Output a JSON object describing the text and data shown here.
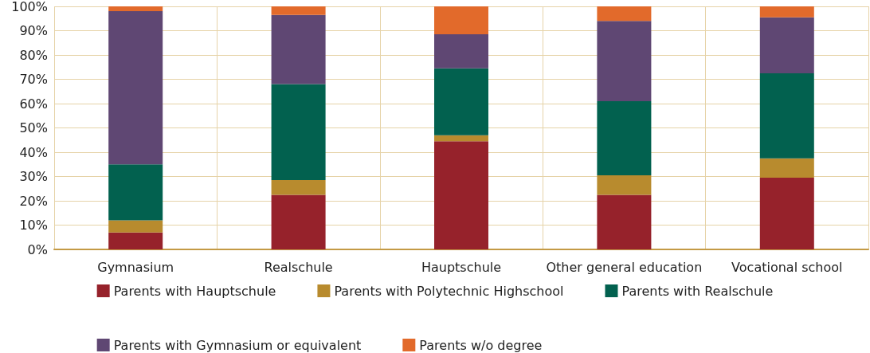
{
  "chart_data": {
    "type": "bar",
    "stacked": true,
    "categories": [
      "Gymnasium",
      "Realschule",
      "Hauptschule",
      "Other general education",
      "Vocational school"
    ],
    "series": [
      {
        "name": "Parents with Hauptschule",
        "color": "#96222b",
        "values": [
          7,
          22.5,
          44.5,
          22.5,
          29.5
        ]
      },
      {
        "name": "Parents with Polytechnic Highschool",
        "color": "#b88b2e",
        "values": [
          5,
          6,
          2.5,
          8,
          8
        ]
      },
      {
        "name": "Parents with Realschule",
        "color": "#02614f",
        "values": [
          23,
          39.5,
          27.5,
          30.5,
          35
        ]
      },
      {
        "name": "Parents with Gymnasium or equivalent",
        "color": "#5f4773",
        "values": [
          63,
          28.5,
          14,
          33,
          23
        ]
      },
      {
        "name": "Parents w/o degree",
        "color": "#e26a2b",
        "values": [
          2,
          3.5,
          11.5,
          6,
          4.5
        ]
      }
    ],
    "ylim": [
      0,
      100
    ],
    "yticks": [
      {
        "value": 0,
        "label": "0%"
      },
      {
        "value": 10,
        "label": "10%"
      },
      {
        "value": 20,
        "label": "20%"
      },
      {
        "value": 30,
        "label": "30%"
      },
      {
        "value": 40,
        "label": "40%"
      },
      {
        "value": 50,
        "label": "50%"
      },
      {
        "value": 60,
        "label": "60%"
      },
      {
        "value": 70,
        "label": "70%"
      },
      {
        "value": 80,
        "label": "80%"
      },
      {
        "value": 90,
        "label": "90%"
      },
      {
        "value": 100,
        "label": "100%"
      }
    ],
    "grid": true,
    "legend": "bottom"
  }
}
